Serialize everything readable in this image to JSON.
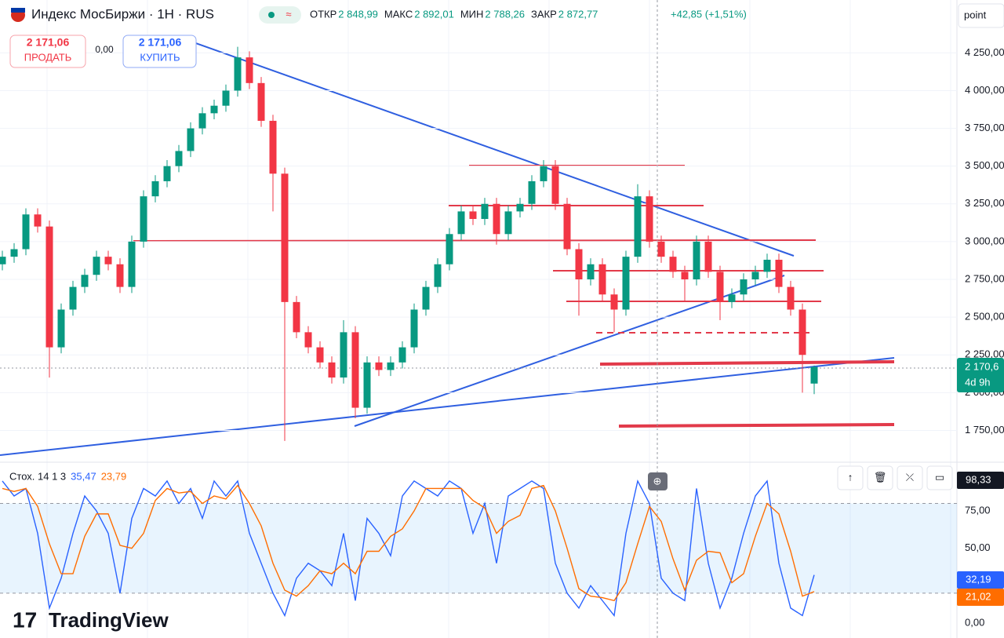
{
  "ui": {
    "symbol": "Индекс МосБиржи · 1H · RUS",
    "ohlc": [
      [
        "ОТКР",
        "2 848,99"
      ],
      [
        "МАКС",
        "2 892,01"
      ],
      [
        "МИН",
        "2 788,26"
      ],
      [
        "ЗАКР",
        "2 872,77"
      ]
    ],
    "change": "+42,85 (+1,51%)",
    "sell_price": "2 171,06",
    "sell": "ПРОДАТЬ",
    "spread": "0,00",
    "buy_price": "2 171,06",
    "buy": "КУПИТЬ",
    "unit": "point",
    "price_badge": "2 170,6",
    "countdown": "4d 9h",
    "stoch_badges": [
      "98,33",
      "32,19",
      "21,02"
    ],
    "logo": "TradingView"
  },
  "chart_data": [
    {
      "type": "candlestick",
      "up_color": "#089981",
      "down_color": "#f23645",
      "grid": true,
      "ylim": [
        1560,
        4600
      ],
      "yticks": [
        {
          "value": 1750,
          "label": "1 750,00"
        },
        {
          "value": 2000,
          "label": "2 000,00"
        },
        {
          "value": 2250,
          "label": "2 250,00"
        },
        {
          "value": 2500,
          "label": "2 500,00"
        },
        {
          "value": 2750,
          "label": "2 750,00"
        },
        {
          "value": 3000,
          "label": "3 000,00"
        },
        {
          "value": 3250,
          "label": "3 250,00"
        },
        {
          "value": 3500,
          "label": "3 500,00"
        },
        {
          "value": 3750,
          "label": "3 750,00"
        },
        {
          "value": 4000,
          "label": "4 000,00"
        },
        {
          "value": 4250,
          "label": "4 250,00"
        }
      ],
      "open": [
        2850,
        2900,
        2950,
        3180,
        3100,
        2300,
        2550,
        2700,
        2780,
        2900,
        2850,
        2700,
        3000,
        3300,
        3400,
        3500,
        3600,
        3750,
        3850,
        3900,
        4000,
        4220,
        4050,
        3800,
        3450,
        2600,
        2400,
        2300,
        2200,
        2100,
        2400,
        1900,
        2200,
        2150,
        2200,
        2300,
        2550,
        2700,
        2850,
        3050,
        3200,
        3150,
        3250,
        3050,
        3200,
        3250,
        3400,
        3500,
        3250,
        2950,
        2750,
        2850,
        2650,
        2550,
        2900,
        3300,
        3000,
        2900,
        2800,
        2750,
        3000,
        2800,
        2600,
        2650,
        2750,
        2800,
        2880,
        2700,
        2550,
        2060
      ],
      "high": [
        2940,
        2990,
        3220,
        3220,
        3140,
        2590,
        2740,
        2820,
        2940,
        2940,
        2890,
        3040,
        3340,
        3440,
        3540,
        3640,
        3790,
        3890,
        3940,
        4040,
        4290,
        4260,
        4090,
        3840,
        3490,
        2640,
        2440,
        2340,
        2240,
        2480,
        2440,
        2240,
        2240,
        2240,
        2340,
        2590,
        2740,
        2890,
        3090,
        3240,
        3240,
        3290,
        3290,
        3240,
        3290,
        3440,
        3540,
        3540,
        3290,
        2990,
        2890,
        2890,
        2690,
        2940,
        3380,
        3340,
        3040,
        2940,
        2840,
        3040,
        3040,
        2840,
        2690,
        2790,
        2840,
        2920,
        2920,
        2740,
        2590,
        2180
      ],
      "low": [
        2810,
        2860,
        2910,
        3060,
        2100,
        2260,
        2510,
        2660,
        2740,
        2810,
        2660,
        2660,
        2960,
        3260,
        3360,
        3460,
        3560,
        3710,
        3810,
        3860,
        3960,
        4010,
        3760,
        3200,
        1680,
        2360,
        2260,
        2160,
        2060,
        2060,
        1830,
        1860,
        2110,
        2110,
        2160,
        2260,
        2510,
        2660,
        2810,
        3010,
        3110,
        3110,
        2980,
        3010,
        3160,
        3210,
        3360,
        3210,
        2910,
        2510,
        2710,
        2610,
        2400,
        2510,
        2860,
        2960,
        2860,
        2760,
        2610,
        2710,
        2760,
        2480,
        2560,
        2610,
        2710,
        2760,
        2660,
        2510,
        2000,
        1990
      ],
      "close": [
        2900,
        2950,
        3180,
        3100,
        2300,
        2550,
        2700,
        2780,
        2900,
        2850,
        2700,
        3000,
        3300,
        3400,
        3500,
        3600,
        3750,
        3850,
        3900,
        4000,
        4220,
        4050,
        3800,
        3450,
        2600,
        2400,
        2300,
        2200,
        2100,
        2400,
        1900,
        2200,
        2150,
        2200,
        2300,
        2550,
        2700,
        2850,
        3050,
        3200,
        3150,
        3250,
        3050,
        3200,
        3250,
        3400,
        3500,
        3250,
        2950,
        2750,
        2850,
        2650,
        2550,
        2900,
        3300,
        3000,
        2900,
        2800,
        2750,
        3000,
        2800,
        2600,
        2650,
        2750,
        2800,
        2880,
        2700,
        2550,
        2250,
        2170.6
      ]
    },
    {
      "type": "line",
      "title": "Стох. 14 1 3",
      "legend_values": [
        "35,47",
        "23,79"
      ],
      "ylim": [
        -10,
        106
      ],
      "band": [
        20,
        80
      ],
      "yticks": [
        {
          "value": 0,
          "label": "0,00"
        },
        {
          "value": 50,
          "label": "50,00"
        },
        {
          "value": 75,
          "label": "75,00"
        }
      ],
      "series": [
        {
          "color": "#2962ff",
          "values": [
            95,
            85,
            90,
            60,
            10,
            30,
            60,
            85,
            75,
            60,
            20,
            70,
            90,
            85,
            95,
            80,
            90,
            70,
            95,
            85,
            95,
            60,
            40,
            20,
            5,
            30,
            40,
            35,
            25,
            60,
            15,
            70,
            60,
            45,
            85,
            95,
            90,
            85,
            95,
            90,
            60,
            80,
            40,
            85,
            90,
            95,
            90,
            40,
            20,
            10,
            25,
            15,
            5,
            60,
            95,
            80,
            30,
            20,
            15,
            90,
            40,
            10,
            30,
            60,
            85,
            95,
            40,
            10,
            5,
            32.19
          ]
        },
        {
          "color": "#ff6d00",
          "values": [
            90,
            88,
            90,
            78,
            53,
            33,
            33,
            58,
            73,
            73,
            52,
            50,
            60,
            82,
            90,
            87,
            88,
            80,
            85,
            83,
            92,
            80,
            65,
            40,
            22,
            18,
            25,
            35,
            33,
            40,
            33,
            48,
            48,
            58,
            63,
            75,
            90,
            90,
            90,
            90,
            82,
            77,
            60,
            68,
            72,
            90,
            92,
            75,
            50,
            23,
            18,
            17,
            15,
            27,
            53,
            78,
            68,
            43,
            22,
            42,
            48,
            47,
            27,
            33,
            58,
            80,
            73,
            48,
            18,
            21.02
          ]
        }
      ]
    }
  ]
}
